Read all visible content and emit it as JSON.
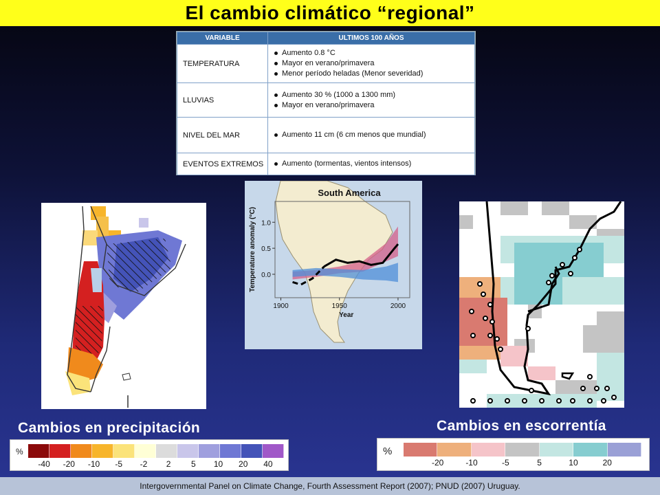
{
  "slide": {
    "title": "El cambio climático “regional”",
    "footer": "Intergovernmental Panel on Climate Change, Fourth Assessment Report (2007); PNUD (2007) Uruguay."
  },
  "table": {
    "headers": [
      "VARIABLE",
      "ULTIMOS 100 AÑOS"
    ],
    "rows": [
      {
        "variable": "TEMPERATURA",
        "items": [
          "Aumento 0.8 °C",
          "Mayor en verano/primavera",
          "Menor período heladas (Menor severidad)"
        ]
      },
      {
        "variable": "LLUVIAS",
        "items": [
          "Aumento 30 % (1000 a 1300 mm)",
          "Mayor en verano/primavera"
        ]
      },
      {
        "variable": "NIVEL DEL MAR",
        "items": [
          "Aumento 11 cm (6 cm menos que mundial)"
        ]
      },
      {
        "variable": "EVENTOS EXTREMOS",
        "items": [
          "Aumento (tormentas, vientos intensos)"
        ]
      }
    ]
  },
  "captions": {
    "precip": "Cambios en precipitación",
    "runoff": "Cambios en escorrentía"
  },
  "legend_precip": {
    "unit": "%",
    "labels": [
      "-40",
      "-20",
      "-10",
      "-5",
      "-2",
      "2",
      "5",
      "10",
      "20",
      "40"
    ],
    "colors": [
      "#8b0a0a",
      "#d42020",
      "#f08a1c",
      "#f7b52b",
      "#fbe37a",
      "#ffffd6",
      "#dcdcdc",
      "#c9c6ea",
      "#9f9fde",
      "#6f78d4",
      "#4453b8",
      "#a058c8"
    ]
  },
  "legend_runoff": {
    "unit": "%",
    "labels": [
      "-20",
      "-10",
      "-5",
      "5",
      "10",
      "20"
    ],
    "colors": [
      "#d97a70",
      "#eeb07c",
      "#f5c4c9",
      "#c4c4c4",
      "#c3e6e2",
      "#86cdd0",
      "#9aa0d6"
    ]
  },
  "chart_data": {
    "type": "line",
    "title": "South America",
    "xlabel": "Year",
    "ylabel": "Temperature anomaly (°C)",
    "xticks": [
      1900,
      1950,
      2000
    ],
    "yticks": [
      0.0,
      0.5,
      1.0
    ],
    "xlim": [
      1895,
      2010
    ],
    "ylim": [
      -0.45,
      1.4
    ],
    "colors": {
      "observed": "#000000",
      "natural_band": "#4f8fd8",
      "all_forcing_band": "#d4608a"
    },
    "series": [
      {
        "values": [
          [
            1910,
            -0.15
          ],
          [
            1917,
            -0.2
          ],
          [
            1927,
            -0.08
          ],
          [
            1937,
            0.15
          ],
          [
            1947,
            0.28
          ],
          [
            1957,
            0.22
          ],
          [
            1967,
            0.25
          ],
          [
            1977,
            0.18
          ],
          [
            1987,
            0.22
          ],
          [
            1997,
            0.5
          ],
          [
            2000,
            0.58
          ]
        ]
      }
    ],
    "bands": [
      {
        "key": "all_forcing_band",
        "upper": [
          [
            1910,
            0.05
          ],
          [
            1930,
            0.08
          ],
          [
            1950,
            0.15
          ],
          [
            1970,
            0.25
          ],
          [
            1990,
            0.6
          ],
          [
            2000,
            0.92
          ]
        ],
        "lower": [
          [
            1910,
            -0.1
          ],
          [
            1930,
            -0.05
          ],
          [
            1950,
            0.02
          ],
          [
            1970,
            0.05
          ],
          [
            1990,
            0.25
          ],
          [
            2000,
            0.35
          ]
        ]
      },
      {
        "key": "natural_band",
        "upper": [
          [
            1910,
            0.08
          ],
          [
            1930,
            0.12
          ],
          [
            1950,
            0.1
          ],
          [
            1970,
            0.08
          ],
          [
            1990,
            0.15
          ],
          [
            2000,
            0.22
          ]
        ],
        "lower": [
          [
            1910,
            -0.05
          ],
          [
            1930,
            -0.02
          ],
          [
            1950,
            -0.05
          ],
          [
            1970,
            -0.1
          ],
          [
            1990,
            -0.12
          ],
          [
            2000,
            -0.15
          ]
        ]
      }
    ]
  }
}
